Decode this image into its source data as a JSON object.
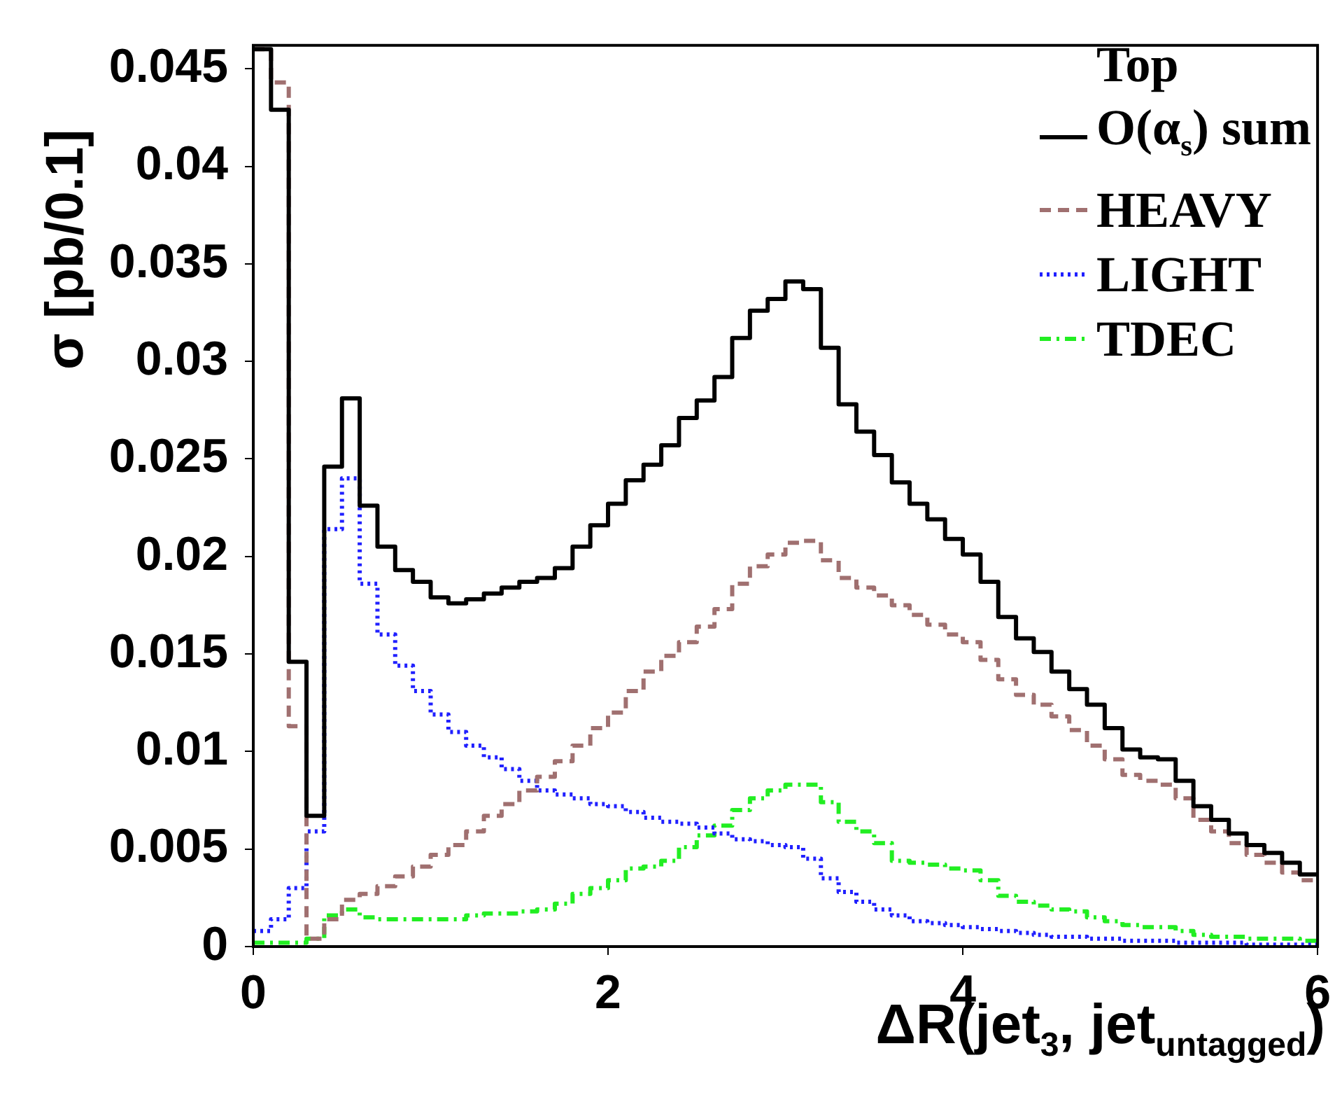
{
  "chart_data": {
    "type": "histogram",
    "xlabel": "ΔR(jet$_{3}$, jet$_{untagged}$)",
    "ylabel": "σ [pb/0.1]",
    "legend_title": "Top",
    "legend": "top right",
    "bins": [
      0,
      0.1,
      0.2,
      0.3,
      0.4,
      0.5,
      0.6,
      0.7,
      0.8,
      0.9,
      1,
      1.1,
      1.2,
      1.3,
      1.4,
      1.5,
      1.6,
      1.7,
      1.8,
      1.9,
      2,
      2.1,
      2.2,
      2.3,
      2.4,
      2.5,
      2.6,
      2.7,
      2.8,
      2.9,
      3,
      3.1,
      3.2,
      3.3,
      3.4,
      3.5,
      3.6,
      3.7,
      3.8,
      3.9,
      4,
      4.1,
      4.2,
      4.3,
      4.4,
      4.5,
      4.6,
      4.7,
      4.8,
      4.9,
      5,
      5.1,
      5.2,
      5.3,
      5.4,
      5.5,
      5.6,
      5.7,
      5.8,
      5.9,
      6
    ],
    "xlim": [
      0,
      6
    ],
    "xticks": [
      0,
      2,
      4,
      6
    ],
    "ylim": [
      0,
      0.0462
    ],
    "yticks": [
      0,
      0.005,
      0.01,
      0.015,
      0.02,
      0.025,
      0.03,
      0.035,
      0.04,
      0.045
    ],
    "grid": false,
    "series": [
      {
        "name": "O(α$_{s}$) sum",
        "color": "#000000",
        "line_style": "solid",
        "values": [
          0.046,
          0.0429,
          0.0146,
          0.0067,
          0.0246,
          0.0281,
          0.0226,
          0.0205,
          0.0193,
          0.0187,
          0.0179,
          0.0176,
          0.0178,
          0.0181,
          0.0184,
          0.0187,
          0.0189,
          0.0194,
          0.0205,
          0.0216,
          0.0227,
          0.0239,
          0.0247,
          0.0257,
          0.0271,
          0.028,
          0.0292,
          0.0312,
          0.0326,
          0.0332,
          0.0341,
          0.0337,
          0.0307,
          0.0278,
          0.0264,
          0.0252,
          0.0238,
          0.0227,
          0.0219,
          0.0209,
          0.0201,
          0.0187,
          0.0169,
          0.0158,
          0.0151,
          0.0141,
          0.0132,
          0.0124,
          0.0112,
          0.0101,
          0.0097,
          0.0096,
          0.0085,
          0.0072,
          0.0065,
          0.0058,
          0.0052,
          0.0048,
          0.0043,
          0.0037
        ]
      },
      {
        "name": "HEAVY",
        "color": "#a07070",
        "line_style": "dashed",
        "values": [
          0.046,
          0.0443,
          0.0113,
          0.0004,
          0.0014,
          0.0024,
          0.0027,
          0.0031,
          0.0036,
          0.0041,
          0.0047,
          0.0052,
          0.0059,
          0.0067,
          0.0073,
          0.008,
          0.0087,
          0.0095,
          0.0103,
          0.0112,
          0.012,
          0.0131,
          0.0141,
          0.0149,
          0.0156,
          0.0164,
          0.0173,
          0.0186,
          0.0195,
          0.0201,
          0.0207,
          0.0208,
          0.0198,
          0.0189,
          0.0184,
          0.018,
          0.0175,
          0.017,
          0.0165,
          0.016,
          0.0156,
          0.0147,
          0.0137,
          0.0129,
          0.0124,
          0.0118,
          0.0111,
          0.0103,
          0.0096,
          0.0088,
          0.0085,
          0.0083,
          0.0076,
          0.0065,
          0.0059,
          0.0053,
          0.0047,
          0.0043,
          0.0038,
          0.0034
        ]
      },
      {
        "name": "LIGHT",
        "color": "#2020ff",
        "line_style": "dotted",
        "values": [
          0.0008,
          0.0014,
          0.003,
          0.0059,
          0.0214,
          0.024,
          0.0186,
          0.016,
          0.0144,
          0.0131,
          0.0119,
          0.011,
          0.0103,
          0.0097,
          0.0091,
          0.0085,
          0.008,
          0.0078,
          0.0076,
          0.0073,
          0.0072,
          0.0069,
          0.0066,
          0.0064,
          0.0063,
          0.0061,
          0.0058,
          0.0055,
          0.0054,
          0.0052,
          0.0051,
          0.0045,
          0.0035,
          0.0028,
          0.0023,
          0.0019,
          0.0016,
          0.0013,
          0.0012,
          0.0011,
          0.001,
          0.0009,
          0.0008,
          0.0007,
          0.0006,
          0.0005,
          0.0005,
          0.0004,
          0.0004,
          0.0003,
          0.0003,
          0.0003,
          0.0002,
          0.0002,
          0.0002,
          0.0002,
          0.0001,
          0.0001,
          0.0001,
          0.0001
        ]
      },
      {
        "name": "TDEC",
        "color": "#22ee22",
        "line_style": "dashdot",
        "values": [
          0.0002,
          0.0002,
          0.0002,
          0.0004,
          0.0016,
          0.0019,
          0.0015,
          0.0014,
          0.0014,
          0.0014,
          0.0014,
          0.0014,
          0.0016,
          0.0017,
          0.0017,
          0.0018,
          0.0019,
          0.0022,
          0.0027,
          0.003,
          0.0034,
          0.004,
          0.0041,
          0.0044,
          0.0051,
          0.0057,
          0.0062,
          0.007,
          0.0076,
          0.008,
          0.0083,
          0.0083,
          0.0074,
          0.0064,
          0.0059,
          0.0053,
          0.0044,
          0.0043,
          0.0042,
          0.004,
          0.0039,
          0.0034,
          0.0026,
          0.0023,
          0.0021,
          0.0019,
          0.0018,
          0.0015,
          0.0013,
          0.0011,
          0.001,
          0.001,
          0.0008,
          0.0006,
          0.0005,
          0.0005,
          0.0004,
          0.0004,
          0.0004,
          0.0003
        ]
      }
    ]
  }
}
